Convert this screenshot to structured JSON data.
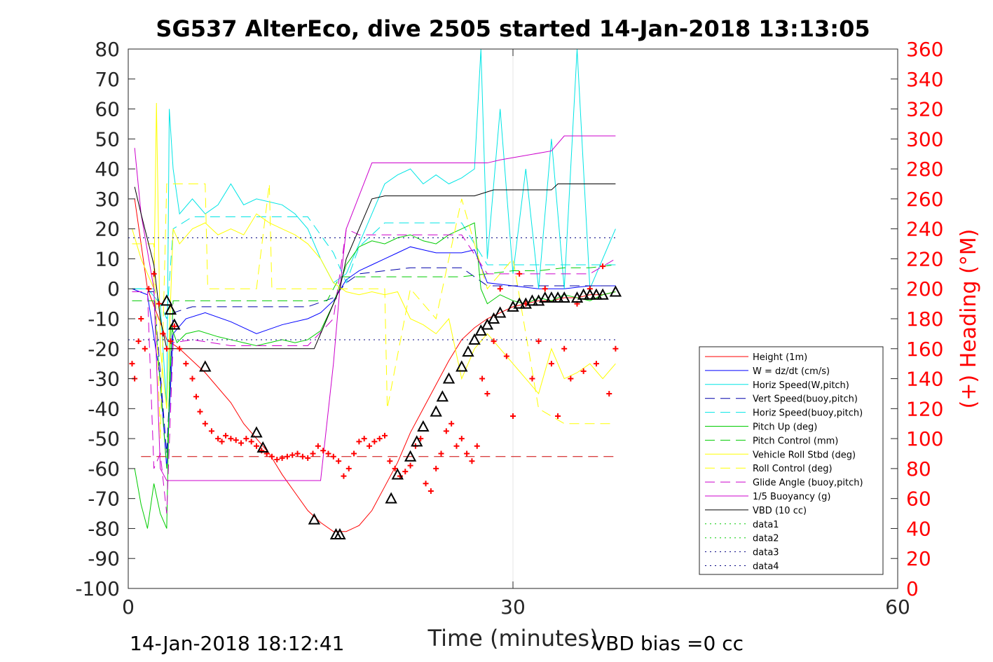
{
  "chart_data": {
    "type": "line",
    "title": "SG537 AlterEco, dive 2505 started 14-Jan-2018 13:13:05",
    "xlabel": "Time (minutes)",
    "ylabel_right": "(+) Heading (°M)",
    "footer_left": "14-Jan-2018 18:12:41",
    "footer_right": "VBD bias =0 cc",
    "xlim": [
      0,
      60
    ],
    "ylim": [
      -100,
      80
    ],
    "ylim_right": [
      0,
      360
    ],
    "xticks": [
      "0",
      "30",
      "60"
    ],
    "xtick_values": [
      0,
      30,
      60
    ],
    "yticks": [
      "80",
      "70",
      "60",
      "50",
      "40",
      "30",
      "20",
      "10",
      "0",
      "-10",
      "-20",
      "-30",
      "-40",
      "-50",
      "-60",
      "-70",
      "-80",
      "-90",
      "-100"
    ],
    "ytick_values": [
      80,
      70,
      60,
      50,
      40,
      30,
      20,
      10,
      0,
      -10,
      -20,
      -30,
      -40,
      -50,
      -60,
      -70,
      -80,
      -90,
      -100
    ],
    "yticks_right": [
      "360",
      "340",
      "320",
      "300",
      "280",
      "260",
      "240",
      "220",
      "200",
      "180",
      "160",
      "140",
      "120",
      "100",
      "80",
      "60",
      "40",
      "20",
      "0"
    ],
    "ytick_right_values": [
      360,
      340,
      320,
      300,
      280,
      260,
      240,
      220,
      200,
      180,
      160,
      140,
      120,
      100,
      80,
      60,
      40,
      20,
      0
    ],
    "grid": "x only at 30",
    "legend_position": "lower-right",
    "series": [
      {
        "name": "Height (1m)",
        "color": "#ff0000",
        "style": "solid",
        "x": [
          0.5,
          1.5,
          3,
          4,
          6,
          8,
          9,
          10,
          11,
          12,
          13,
          14,
          15,
          16,
          17,
          18,
          19,
          20,
          21,
          22,
          23,
          24,
          25,
          26,
          27,
          28,
          29,
          30,
          31,
          32,
          33,
          34,
          35,
          36,
          37,
          38
        ],
        "y": [
          30,
          0,
          -17,
          -20,
          -28,
          -38,
          -45,
          -50,
          -55,
          -62,
          -68,
          -74,
          -78,
          -81,
          -81,
          -79,
          -74,
          -66,
          -58,
          -48,
          -40,
          -32,
          -24,
          -17,
          -13,
          -10,
          -8,
          -6,
          -5,
          -4,
          -4,
          -3,
          -3,
          -2,
          -2,
          -1
        ]
      },
      {
        "name": "W = dz/dt (cm/s)",
        "color": "#0000ff",
        "style": "solid",
        "x": [
          0.3,
          1.5,
          2.5,
          3,
          3.5,
          4.5,
          6,
          8,
          9,
          10,
          12,
          14,
          15,
          16,
          17,
          18,
          19,
          20,
          21,
          22,
          23,
          24,
          25,
          26,
          27,
          28,
          30,
          32,
          34,
          36,
          38
        ],
        "y": [
          0,
          -2,
          -30,
          -60,
          -15,
          -10,
          -8,
          -11,
          -13,
          -15,
          -12,
          -10,
          -8,
          -4,
          3,
          6,
          8,
          10,
          12,
          14,
          13,
          12,
          12,
          12,
          13,
          2,
          1,
          0,
          0,
          1,
          1
        ]
      },
      {
        "name": "Horiz Speed(W,pitch)",
        "color": "#00e5e5",
        "style": "solid",
        "x": [
          0.3,
          1.5,
          2.5,
          3,
          3.2,
          3.5,
          4,
          5,
          6,
          7,
          8,
          9,
          10,
          11,
          12,
          13,
          14,
          15,
          16,
          17,
          18,
          19,
          20,
          21,
          22,
          23,
          24,
          25,
          26,
          27,
          27.5,
          28,
          29,
          30,
          31,
          32,
          33,
          34,
          35,
          36,
          37,
          38
        ],
        "y": [
          0,
          0,
          -5,
          -40,
          60,
          40,
          25,
          30,
          25,
          28,
          35,
          28,
          30,
          29,
          28,
          25,
          20,
          10,
          2,
          5,
          15,
          25,
          35,
          38,
          40,
          35,
          38,
          35,
          37,
          40,
          80,
          10,
          60,
          5,
          40,
          0,
          50,
          0,
          80,
          0,
          10,
          20
        ]
      },
      {
        "name": "Vert Speed(buoy,pitch)",
        "color": "#0000aa",
        "style": "dash",
        "x": [
          0.3,
          2,
          3,
          3.5,
          5,
          8,
          11,
          14,
          16,
          17,
          18,
          20,
          22,
          24,
          26,
          28,
          30,
          32,
          34,
          36,
          38
        ],
        "y": [
          -1,
          -1,
          -55,
          -8,
          -6,
          -6,
          -6,
          -6,
          -3,
          2,
          5,
          6,
          7,
          7,
          7,
          1,
          1,
          1,
          1,
          1,
          1
        ]
      },
      {
        "name": "Horiz Speed(buoy,pitch)",
        "color": "#00e5e5",
        "style": "dash",
        "x": [
          0.3,
          2,
          3,
          3.5,
          5,
          8,
          11,
          14,
          16,
          17,
          18,
          20,
          22,
          24,
          26,
          28,
          30,
          32,
          34,
          36,
          38
        ],
        "y": [
          0,
          0,
          -10,
          20,
          24,
          24,
          24,
          24,
          12,
          2,
          14,
          22,
          22,
          22,
          22,
          8,
          8,
          8,
          8,
          8,
          8
        ]
      },
      {
        "name": "Pitch Up (deg)",
        "color": "#00cc00",
        "style": "solid",
        "x": [
          0.5,
          1,
          1.5,
          2,
          2.5,
          3,
          3.3,
          3.8,
          4.5,
          5.5,
          7,
          8,
          9,
          10,
          11,
          12,
          13,
          14,
          15,
          16,
          17,
          18,
          19,
          20,
          21,
          22,
          23,
          24,
          25,
          26,
          27,
          27.5,
          28,
          29,
          30,
          31,
          32,
          33,
          34,
          35,
          36,
          37,
          38
        ],
        "y": [
          -60,
          -72,
          -80,
          -65,
          -75,
          -80,
          -12,
          -18,
          -15,
          -14,
          -16,
          -17,
          -18,
          -19,
          -18,
          -17,
          -18,
          -17,
          -14,
          -5,
          8,
          14,
          16,
          15,
          17,
          18,
          16,
          15,
          18,
          20,
          22,
          0,
          -5,
          -2,
          -4,
          -5,
          -3,
          -4,
          -2,
          -3,
          -4,
          -2,
          -1
        ]
      },
      {
        "name": "Pitch Control (mm)",
        "color": "#00cc00",
        "style": "dash",
        "x": [
          0.3,
          2,
          3,
          3.5,
          5,
          8,
          11,
          14,
          15.5,
          16.5,
          18,
          20,
          22,
          24,
          26,
          28,
          30,
          32,
          34,
          36,
          38
        ],
        "y": [
          -4,
          -4,
          -60,
          -4,
          -4,
          -4,
          -4,
          -4,
          -4,
          4,
          4,
          4,
          4,
          4,
          4,
          5,
          6,
          6,
          7,
          7,
          8
        ]
      },
      {
        "name": "Vehicle Roll Stbd (deg)",
        "color": "#ffff00",
        "style": "solid",
        "x": [
          0.3,
          1,
          2,
          2.2,
          2.5,
          3,
          3.5,
          4,
          5,
          6,
          7,
          8,
          9,
          10,
          11,
          12,
          13,
          14,
          15,
          16,
          17,
          18,
          19,
          20,
          21,
          22,
          23,
          24,
          25,
          26,
          27,
          28,
          29,
          30,
          31,
          32,
          33,
          34,
          35,
          36,
          37,
          38
        ],
        "y": [
          20,
          10,
          0,
          62,
          -20,
          -40,
          20,
          15,
          20,
          22,
          18,
          20,
          18,
          25,
          22,
          20,
          18,
          15,
          10,
          2,
          -1,
          -2,
          -1,
          -2,
          -1,
          -10,
          -12,
          -15,
          -10,
          -30,
          -20,
          -15,
          -20,
          -25,
          -30,
          -35,
          -20,
          -30,
          -28,
          -25,
          -30,
          -25
        ]
      },
      {
        "name": "Roll Control (deg)",
        "color": "#ffff00",
        "style": "dash",
        "x": [
          0.3,
          2,
          2.5,
          3,
          4,
          6,
          6.2,
          8,
          10,
          11,
          11.2,
          14,
          16,
          18,
          20,
          20.2,
          22,
          24,
          26,
          28,
          30,
          32,
          34,
          36,
          38
        ],
        "y": [
          15,
          15,
          -50,
          35,
          35,
          35,
          0,
          0,
          0,
          35,
          0,
          0,
          0,
          0,
          0,
          -40,
          0,
          -10,
          30,
          0,
          10,
          -40,
          -45,
          -45,
          -45
        ]
      },
      {
        "name": "Glide Angle (buoy,pitch)",
        "color": "#cc00cc",
        "style": "dash",
        "x": [
          0.3,
          1.5,
          2,
          2.5,
          3,
          3.5,
          5,
          8,
          11,
          14,
          16,
          17,
          18,
          20,
          22,
          24,
          26,
          28,
          30,
          32,
          34,
          36,
          38
        ],
        "y": [
          -1,
          -1,
          -60,
          -55,
          -75,
          -18,
          -17,
          -19,
          -19,
          -19,
          -10,
          20,
          18,
          18,
          18,
          18,
          18,
          5,
          5,
          5,
          5,
          5,
          10
        ]
      },
      {
        "name": "1/5 Buoyancy (g)",
        "color": "#cc00cc",
        "style": "solid",
        "x": [
          0.5,
          1,
          2,
          2.5,
          3,
          15,
          16,
          16.5,
          17,
          19,
          22,
          26,
          28,
          29,
          33,
          34,
          38
        ],
        "y": [
          47,
          25,
          0,
          -60,
          -64,
          -64,
          -25,
          0,
          20,
          42,
          42,
          42,
          42,
          43,
          46,
          51,
          51
        ]
      },
      {
        "name": "VBD (10 cc)",
        "color": "#000000",
        "style": "solid",
        "x": [
          0.5,
          1,
          2,
          2.5,
          3,
          14.5,
          15.5,
          16.5,
          17,
          18,
          19,
          20,
          27,
          28.5,
          33,
          33.5,
          38
        ],
        "y": [
          34,
          25,
          8,
          -10,
          -20,
          -20,
          -10,
          0,
          10,
          20,
          30,
          31,
          31,
          33,
          33,
          35,
          35
        ]
      },
      {
        "name": "data1",
        "color": "#00cc00",
        "style": "dot",
        "x": [],
        "y": []
      },
      {
        "name": "data2",
        "color": "#00cc00",
        "style": "dot",
        "x": [],
        "y": []
      },
      {
        "name": "data3",
        "color": "#000080",
        "style": "dot",
        "x": [
          0,
          38
        ],
        "y": [
          17,
          17
        ]
      },
      {
        "name": "data4",
        "color": "#000080",
        "style": "dot",
        "x": [
          0,
          38
        ],
        "y": [
          -17,
          -17
        ]
      }
    ],
    "red_dashed_line": {
      "color": "#cc0000",
      "x": [
        1,
        38
      ],
      "y": [
        -56,
        -56
      ]
    },
    "heading_points": {
      "color": "#ff0000",
      "marker": "+",
      "axis": "right",
      "x": [
        0.3,
        0.5,
        0.8,
        1,
        1.3,
        1.6,
        2,
        2.4,
        2.7,
        3,
        3.3,
        3.6,
        4,
        4.5,
        5,
        5.3,
        5.6,
        6,
        6.5,
        7,
        7.3,
        7.6,
        8,
        8.4,
        8.8,
        9.2,
        9.6,
        10,
        10.4,
        10.8,
        11.2,
        11.6,
        12,
        12.4,
        12.8,
        13.2,
        13.6,
        14,
        14.4,
        14.8,
        15.2,
        15.6,
        16,
        16.4,
        16.8,
        17.2,
        17.6,
        18,
        18.4,
        18.8,
        19.2,
        19.6,
        20,
        20.4,
        20.8,
        21.2,
        21.6,
        22,
        22.4,
        22.8,
        23.2,
        23.6,
        24,
        24.4,
        24.8,
        25.2,
        25.6,
        26,
        26.4,
        26.8,
        27.2,
        27.6,
        28,
        28.5,
        29,
        29.5,
        30,
        30.5,
        31,
        31.5,
        32,
        32.5,
        33,
        33.5,
        34,
        34.5,
        35,
        35.5,
        36,
        36.5,
        37,
        37.5,
        38
      ],
      "y": [
        150,
        140,
        165,
        180,
        160,
        200,
        210,
        190,
        170,
        160,
        165,
        175,
        160,
        150,
        140,
        128,
        118,
        110,
        105,
        100,
        98,
        102,
        100,
        99,
        97,
        100,
        98,
        95,
        92,
        90,
        88,
        86,
        87,
        88,
        89,
        90,
        88,
        87,
        90,
        95,
        92,
        90,
        88,
        85,
        75,
        80,
        90,
        98,
        100,
        95,
        98,
        100,
        102,
        85,
        80,
        75,
        78,
        82,
        95,
        100,
        70,
        65,
        80,
        90,
        105,
        110,
        95,
        100,
        90,
        85,
        95,
        140,
        130,
        165,
        200,
        155,
        115,
        210,
        190,
        140,
        165,
        200,
        150,
        115,
        160,
        140,
        190,
        145,
        200,
        150,
        215,
        130,
        160
      ]
    },
    "triangle_markers": {
      "color": "#000000",
      "x": [
        3,
        3.3,
        3.6,
        6,
        10,
        10.5,
        14.5,
        16.2,
        16.5,
        20.5,
        21,
        22,
        22.5,
        23,
        24,
        24.5,
        25,
        26,
        26.5,
        27,
        27.5,
        28,
        28.5,
        29,
        30,
        30.5,
        31,
        31.5,
        32,
        32.5,
        33,
        33.5,
        34,
        35,
        35.5,
        36,
        36.5,
        37,
        38
      ],
      "y": [
        -4,
        -7,
        -12,
        -26,
        -48,
        -53,
        -77,
        -82,
        -82,
        -70,
        -62,
        -56,
        -51,
        -46,
        -41,
        -36,
        -30,
        -26,
        -21,
        -17,
        -14,
        -12,
        -10,
        -8,
        -6,
        -5,
        -5,
        -4,
        -4,
        -3,
        -3,
        -3,
        -3,
        -3,
        -2,
        -2,
        -2,
        -2,
        -1
      ]
    }
  }
}
